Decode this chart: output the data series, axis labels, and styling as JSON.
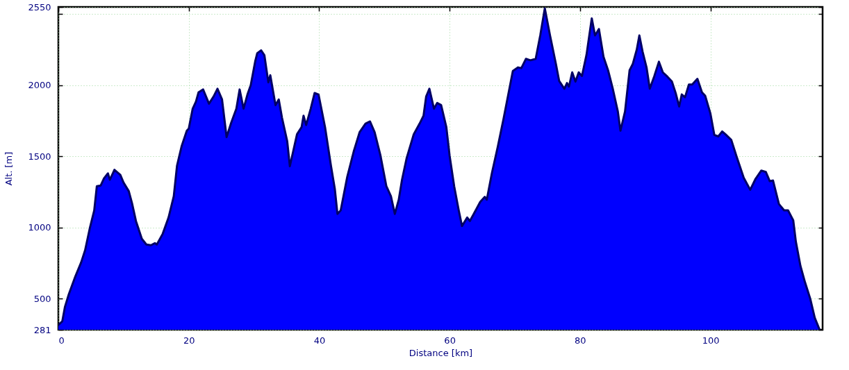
{
  "chart_data": {
    "type": "area",
    "xlabel": "Distance [km]",
    "ylabel": "Alt. [m]",
    "x": [
      0.0,
      0.6,
      1.0,
      1.6,
      2.6,
      3.5,
      4.1,
      4.8,
      5.5,
      5.9,
      6.5,
      7.0,
      7.6,
      7.9,
      8.6,
      9.5,
      10.0,
      10.8,
      11.3,
      11.9,
      12.8,
      13.5,
      14.2,
      14.8,
      15.1,
      16.0,
      16.9,
      17.7,
      18.2,
      18.9,
      19.7,
      20.0,
      20.6,
      21.1,
      21.5,
      22.2,
      23.1,
      23.8,
      24.4,
      25.1,
      25.8,
      26.5,
      27.3,
      27.8,
      28.4,
      29.0,
      29.5,
      30.2,
      30.5,
      31.1,
      31.6,
      32.2,
      32.5,
      33.3,
      33.8,
      34.3,
      35.1,
      35.5,
      36.6,
      37.3,
      37.6,
      38.0,
      38.7,
      39.3,
      39.9,
      40.9,
      41.8,
      42.4,
      42.8,
      43.3,
      44.3,
      45.3,
      46.2,
      47.1,
      47.8,
      48.5,
      49.4,
      50.3,
      51.0,
      51.6,
      52.2,
      52.7,
      53.4,
      54.5,
      55.4,
      56.0,
      56.4,
      56.9,
      57.6,
      58.1,
      58.7,
      59.5,
      60.0,
      60.7,
      61.4,
      61.9,
      62.7,
      63.1,
      63.7,
      64.7,
      65.4,
      65.7,
      66.5,
      67.4,
      68.3,
      69.0,
      69.7,
      70.5,
      71.0,
      71.7,
      72.4,
      73.2,
      73.9,
      74.6,
      75.4,
      76.3,
      76.8,
      77.6,
      78.0,
      78.3,
      78.8,
      79.3,
      79.8,
      80.3,
      81.0,
      81.8,
      82.3,
      82.9,
      83.6,
      84.3,
      85.0,
      85.8,
      86.2,
      86.9,
      87.6,
      88.1,
      88.7,
      89.1,
      89.6,
      90.2,
      90.7,
      91.4,
      92.1,
      92.7,
      93.4,
      94.1,
      94.7,
      95.2,
      95.6,
      96.1,
      96.7,
      97.2,
      98.0,
      98.7,
      99.2,
      100.0,
      100.6,
      101.2,
      101.8,
      102.3,
      103.2,
      104.0,
      105.1,
      106.1,
      106.9,
      107.8,
      108.5,
      109.1,
      109.6,
      110.5,
      111.3,
      111.9,
      112.7,
      113.1,
      113.8,
      114.5,
      115.3,
      116.0,
      116.7
    ],
    "series": [
      {
        "color": "#0000ff",
        "values": [
          315,
          340,
          440,
          530,
          655,
          755,
          840,
          990,
          1120,
          1290,
          1295,
          1345,
          1380,
          1335,
          1405,
          1370,
          1315,
          1255,
          1170,
          1045,
          920,
          880,
          875,
          890,
          880,
          955,
          1070,
          1220,
          1435,
          1570,
          1680,
          1695,
          1835,
          1885,
          1950,
          1970,
          1870,
          1920,
          1975,
          1900,
          1635,
          1735,
          1835,
          1970,
          1835,
          1935,
          2000,
          2170,
          2225,
          2245,
          2210,
          2020,
          2070,
          1860,
          1900,
          1770,
          1605,
          1430,
          1655,
          1705,
          1785,
          1720,
          1835,
          1945,
          1935,
          1705,
          1435,
          1270,
          1095,
          1120,
          1355,
          1535,
          1670,
          1730,
          1745,
          1670,
          1505,
          1290,
          1220,
          1095,
          1195,
          1335,
          1485,
          1655,
          1730,
          1785,
          1920,
          1975,
          1835,
          1875,
          1860,
          1705,
          1505,
          1290,
          1120,
          1010,
          1070,
          1045,
          1095,
          1180,
          1215,
          1195,
          1385,
          1570,
          1770,
          1935,
          2100,
          2125,
          2120,
          2185,
          2175,
          2185,
          2350,
          2540,
          2350,
          2150,
          2030,
          1975,
          2015,
          1990,
          2090,
          2025,
          2090,
          2065,
          2215,
          2470,
          2350,
          2395,
          2200,
          2105,
          1980,
          1815,
          1680,
          1815,
          2105,
          2150,
          2250,
          2350,
          2235,
          2125,
          1975,
          2065,
          2165,
          2090,
          2060,
          2025,
          1940,
          1850,
          1935,
          1915,
          2005,
          2005,
          2045,
          1950,
          1925,
          1800,
          1650,
          1640,
          1675,
          1655,
          1615,
          1500,
          1350,
          1265,
          1340,
          1400,
          1390,
          1325,
          1330,
          1165,
          1120,
          1120,
          1050,
          900,
          730,
          615,
          500,
          365,
          285
        ]
      }
    ],
    "xlim": [
      0,
      117.2
    ],
    "ylim": [
      281,
      2550
    ],
    "xticks": [
      0,
      20,
      40,
      60,
      80,
      100
    ],
    "yticks": [
      281,
      500,
      1000,
      1500,
      2000,
      {
        "value": 2500,
        "label": null
      },
      2550
    ],
    "grid": true
  }
}
